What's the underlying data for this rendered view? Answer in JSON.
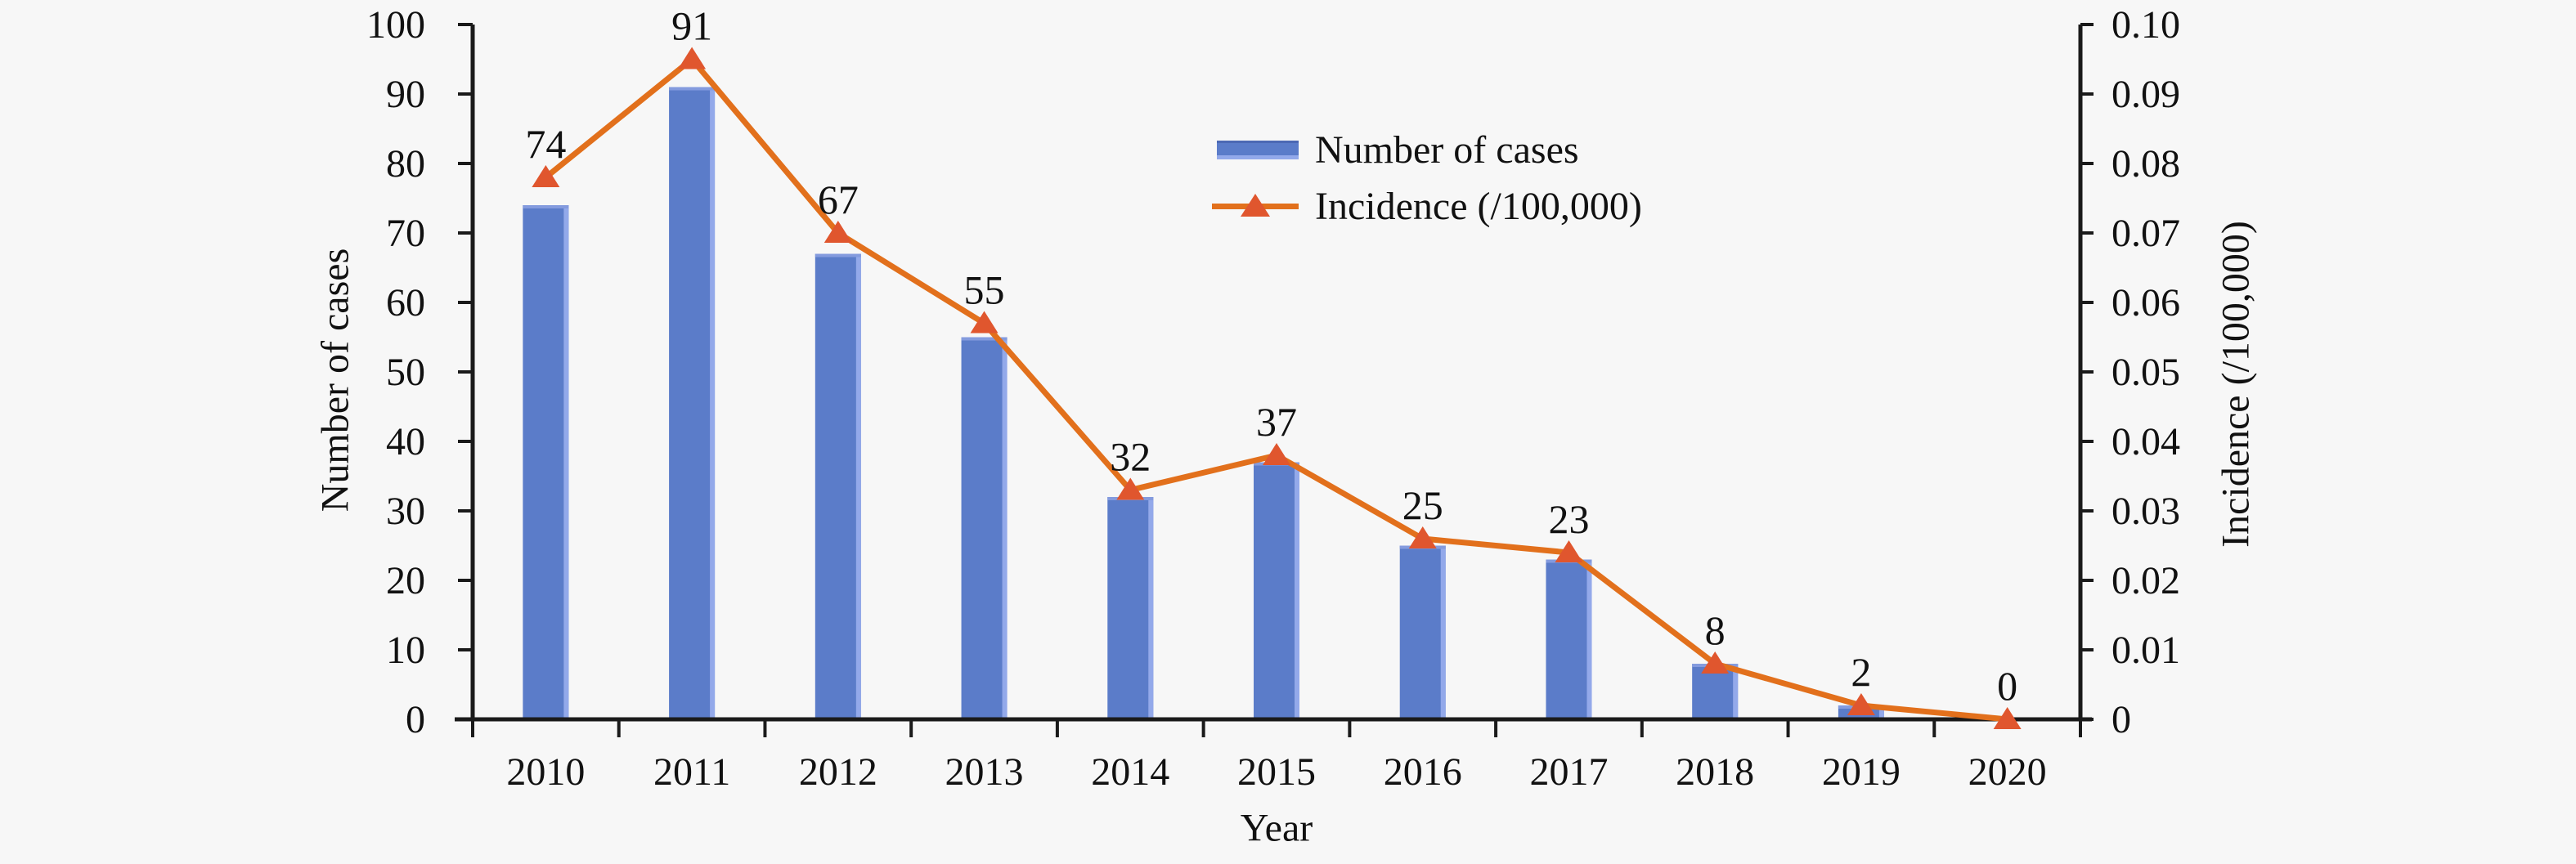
{
  "figure": {
    "background": "#f7f7f7",
    "axis_color": "#1a1a1a",
    "text_color": "#111111"
  },
  "chart_data": {
    "type": "bar",
    "subtype": "bar+line combo, dual y-axis",
    "categories": [
      "2010",
      "2011",
      "2012",
      "2013",
      "2014",
      "2015",
      "2016",
      "2017",
      "2018",
      "2019",
      "2020"
    ],
    "series": [
      {
        "name": "Number of cases",
        "type": "bar",
        "axis": "left",
        "color": "#5b7cc9",
        "color_top_edge": "#849bde",
        "color_right_edge": "#93a9ea",
        "values": [
          74,
          91,
          67,
          55,
          32,
          37,
          25,
          23,
          8,
          2,
          0
        ]
      },
      {
        "name": "Incidence (/100,000)",
        "type": "line",
        "axis": "right",
        "color": "#e2701c",
        "marker": "triangle-up",
        "marker_color": "#e0562e",
        "values": [
          0.078,
          0.095,
          0.07,
          0.057,
          0.033,
          0.038,
          0.026,
          0.024,
          0.008,
          0.002,
          0
        ]
      }
    ],
    "data_labels": [
      "74",
      "91",
      "67",
      "55",
      "32",
      "37",
      "25",
      "23",
      "8",
      "2",
      "0"
    ],
    "left_axis": {
      "label": "Number of cases",
      "min": 0,
      "max": 100,
      "step": 10,
      "ticks": [
        "100",
        "90",
        "80",
        "70",
        "60",
        "50",
        "40",
        "30",
        "20",
        "10",
        "0"
      ]
    },
    "right_axis": {
      "label": "Incidence (/100,000)",
      "min": 0,
      "max": 0.1,
      "step": 0.01,
      "ticks": [
        "0.10",
        "0.09",
        "0.08",
        "0.07",
        "0.06",
        "0.05",
        "0.04",
        "0.03",
        "0.02",
        "0.01",
        "0"
      ]
    },
    "x_axis": {
      "label": "Year"
    },
    "legend": {
      "position": "top-center-inside",
      "entries": [
        "Number of cases",
        "Incidence (/100,000)"
      ]
    },
    "grid": false
  }
}
